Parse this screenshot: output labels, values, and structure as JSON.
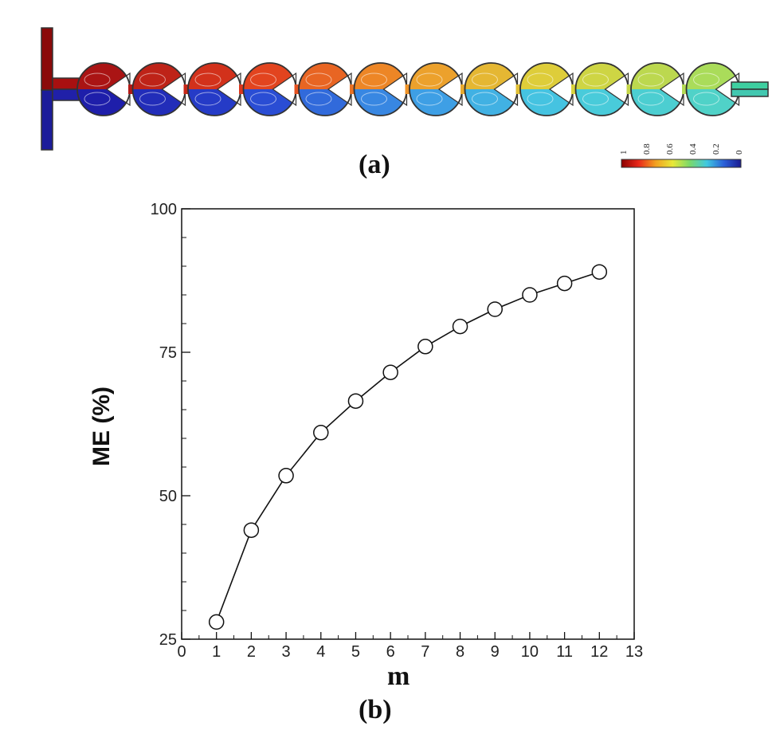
{
  "panel_a": {
    "label": "(a)",
    "colorbar": {
      "ticks": [
        "1",
        "0.8",
        "0.6",
        "0.4",
        "0.2",
        "0"
      ],
      "colors": [
        "#8b0000",
        "#e8281a",
        "#f2a020",
        "#e8e838",
        "#7ad86a",
        "#40c8e0",
        "#2a5fd8",
        "#1a1a90"
      ]
    },
    "mixer_units": 12
  },
  "panel_b": {
    "label": "(b)"
  },
  "chart_data": {
    "type": "line",
    "xlabel": "m",
    "ylabel": "ME (%)",
    "xlim": [
      0,
      13
    ],
    "ylim": [
      25,
      100
    ],
    "xticks": [
      "0",
      "1",
      "2",
      "3",
      "4",
      "5",
      "6",
      "7",
      "8",
      "9",
      "10",
      "11",
      "12",
      "13"
    ],
    "yticks": [
      "25",
      "50",
      "75",
      "100"
    ],
    "marker": "circle",
    "series": [
      {
        "x": [
          1,
          2,
          3,
          4,
          5,
          6,
          7,
          8,
          9,
          10,
          11,
          12
        ],
        "values": [
          28,
          44,
          53.5,
          61,
          66.5,
          71.5,
          76,
          79.5,
          82.5,
          85,
          87,
          89
        ]
      }
    ]
  }
}
